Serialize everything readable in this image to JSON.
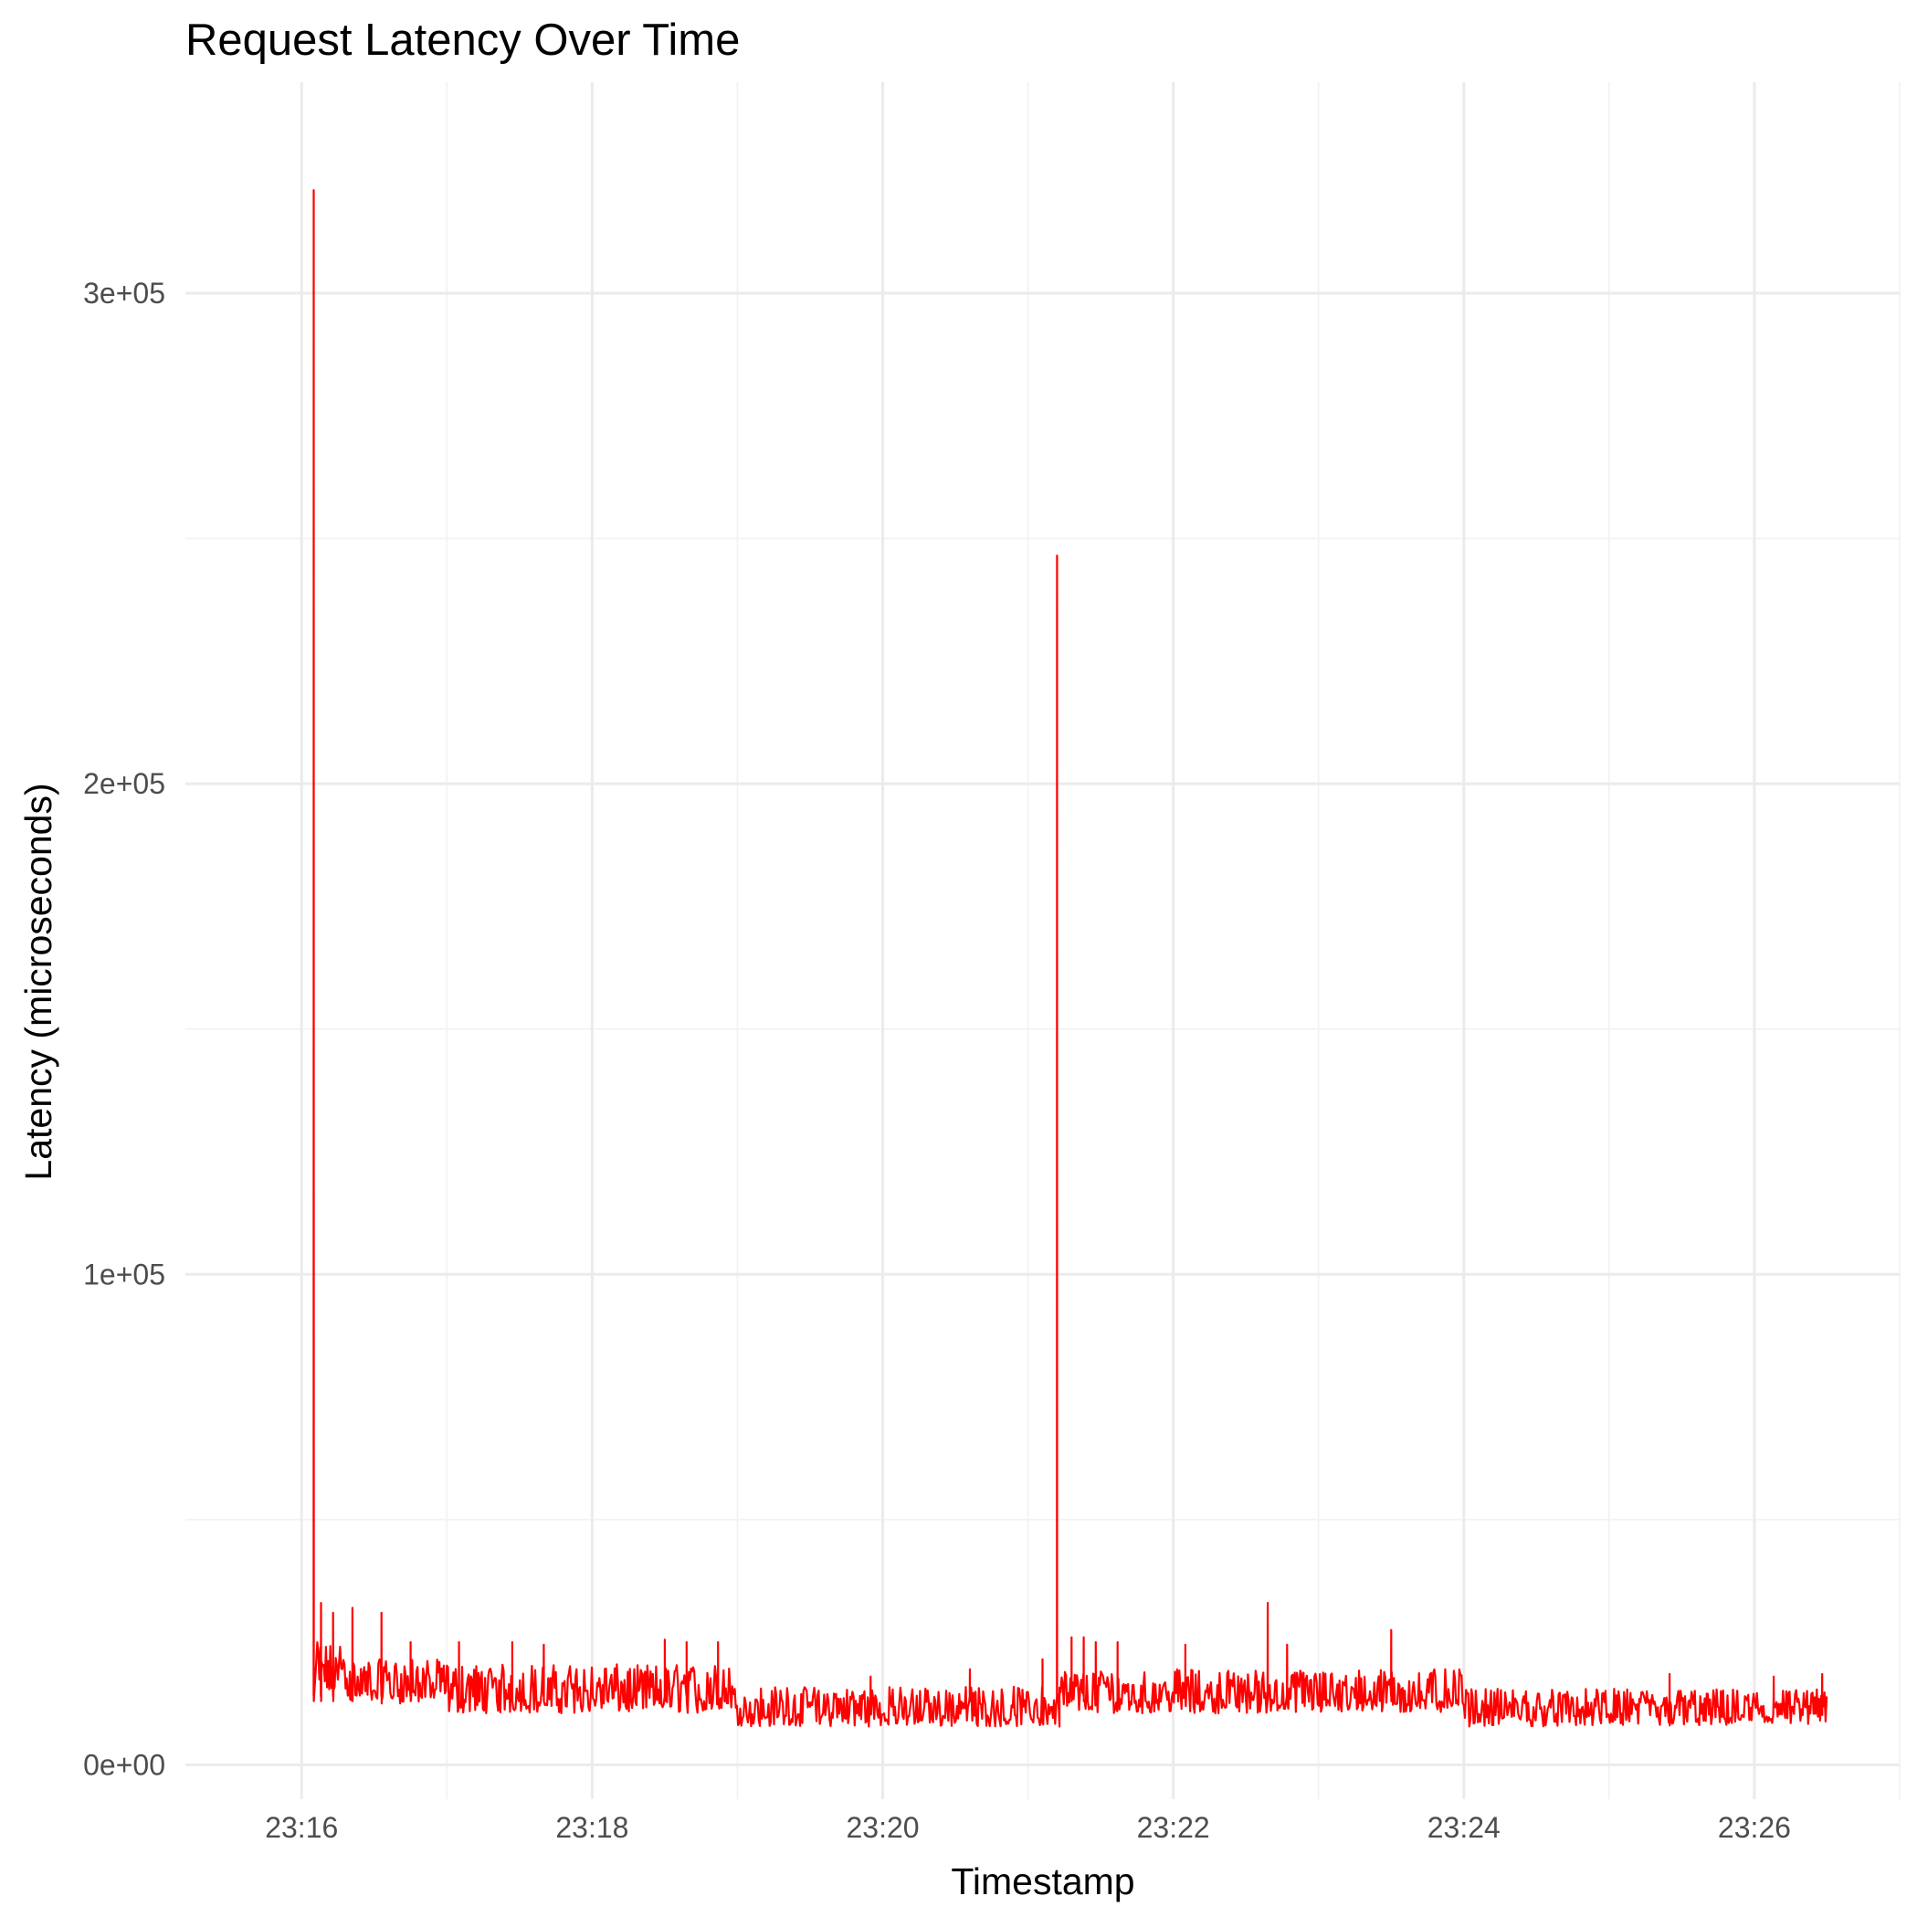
{
  "chart_data": {
    "type": "line",
    "title": "Request Latency Over Time",
    "xlabel": "Timestamp",
    "ylabel": "Latency (microseconds)",
    "x_type": "time",
    "xlim": [
      "23:15:12",
      "23:27:00"
    ],
    "ylim": [
      -7000,
      343000
    ],
    "x_ticks": [
      {
        "value": "23:16:00",
        "label": "23:16"
      },
      {
        "value": "23:18:00",
        "label": "23:18"
      },
      {
        "value": "23:20:00",
        "label": "23:20"
      },
      {
        "value": "23:22:00",
        "label": "23:22"
      },
      {
        "value": "23:24:00",
        "label": "23:24"
      },
      {
        "value": "23:26:00",
        "label": "23:26"
      }
    ],
    "x_minor_ticks": [
      "23:17:00",
      "23:19:00",
      "23:21:00",
      "23:23:00",
      "23:25:00",
      "23:27:00"
    ],
    "y_ticks": [
      {
        "value": 0,
        "label": "0e+00"
      },
      {
        "value": 100000,
        "label": "1e+05"
      },
      {
        "value": 200000,
        "label": "2e+05"
      },
      {
        "value": 300000,
        "label": "3e+05"
      }
    ],
    "y_minor_ticks": [
      50000,
      150000,
      250000
    ],
    "grid": true,
    "legend": "none",
    "series": [
      {
        "color": "#ff0000",
        "regimes": [
          {
            "start": "23:16:06",
            "end": "23:16:20",
            "low": 14000,
            "high": 25000
          },
          {
            "start": "23:16:20",
            "end": "23:17:00",
            "low": 12500,
            "high": 21500
          },
          {
            "start": "23:17:00",
            "end": "23:18:58",
            "low": 10500,
            "high": 20500
          },
          {
            "start": "23:18:58",
            "end": "23:21:13",
            "low": 7800,
            "high": 16000
          },
          {
            "start": "23:21:13",
            "end": "23:24:00",
            "low": 10500,
            "high": 19500
          },
          {
            "start": "23:24:00",
            "end": "23:26:30",
            "low": 7800,
            "high": 15500
          }
        ],
        "spikes": [
          {
            "x": "23:16:05",
            "y": 321000
          },
          {
            "x": "23:16:08",
            "y": 33000
          },
          {
            "x": "23:16:13",
            "y": 31000
          },
          {
            "x": "23:16:21",
            "y": 32000
          },
          {
            "x": "23:16:33",
            "y": 31000
          },
          {
            "x": "23:16:45",
            "y": 25000
          },
          {
            "x": "23:17:05",
            "y": 25000
          },
          {
            "x": "23:17:27",
            "y": 25000
          },
          {
            "x": "23:17:40",
            "y": 24500
          },
          {
            "x": "23:18:30",
            "y": 25500
          },
          {
            "x": "23:18:39",
            "y": 25000
          },
          {
            "x": "23:18:52",
            "y": 25000
          },
          {
            "x": "23:19:55",
            "y": 18000
          },
          {
            "x": "23:20:36",
            "y": 19500
          },
          {
            "x": "23:21:06",
            "y": 21500
          },
          {
            "x": "23:21:12",
            "y": 246500
          },
          {
            "x": "23:21:18",
            "y": 26000
          },
          {
            "x": "23:21:23",
            "y": 26000
          },
          {
            "x": "23:21:28",
            "y": 25000
          },
          {
            "x": "23:21:37",
            "y": 25000
          },
          {
            "x": "23:22:05",
            "y": 24500
          },
          {
            "x": "23:22:39",
            "y": 33000
          },
          {
            "x": "23:22:47",
            "y": 24500
          },
          {
            "x": "23:23:30",
            "y": 27500
          },
          {
            "x": "23:25:25",
            "y": 18500
          },
          {
            "x": "23:26:08",
            "y": 18000
          },
          {
            "x": "23:26:28",
            "y": 18500
          }
        ]
      }
    ]
  }
}
